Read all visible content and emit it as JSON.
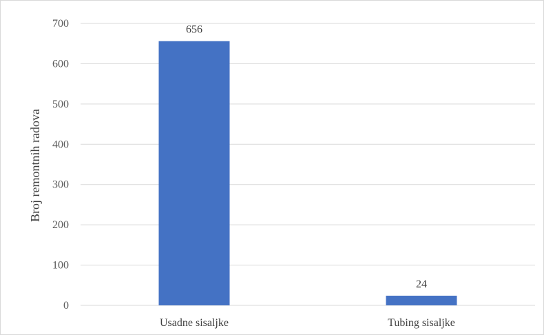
{
  "chart_data": {
    "type": "bar",
    "title": "",
    "xlabel": "",
    "ylabel": "Broj remontnih radova",
    "categories": [
      "Usadne sisaljke",
      "Tubing sisaljke"
    ],
    "values": [
      656,
      24
    ],
    "data_labels": [
      "656",
      "24"
    ],
    "ylim": [
      0,
      700
    ],
    "yticks": [
      0,
      100,
      200,
      300,
      400,
      500,
      600,
      700
    ],
    "grid": true,
    "legend": "none",
    "bar_color": "#4472c4",
    "grid_color": "#d9d9d9"
  }
}
